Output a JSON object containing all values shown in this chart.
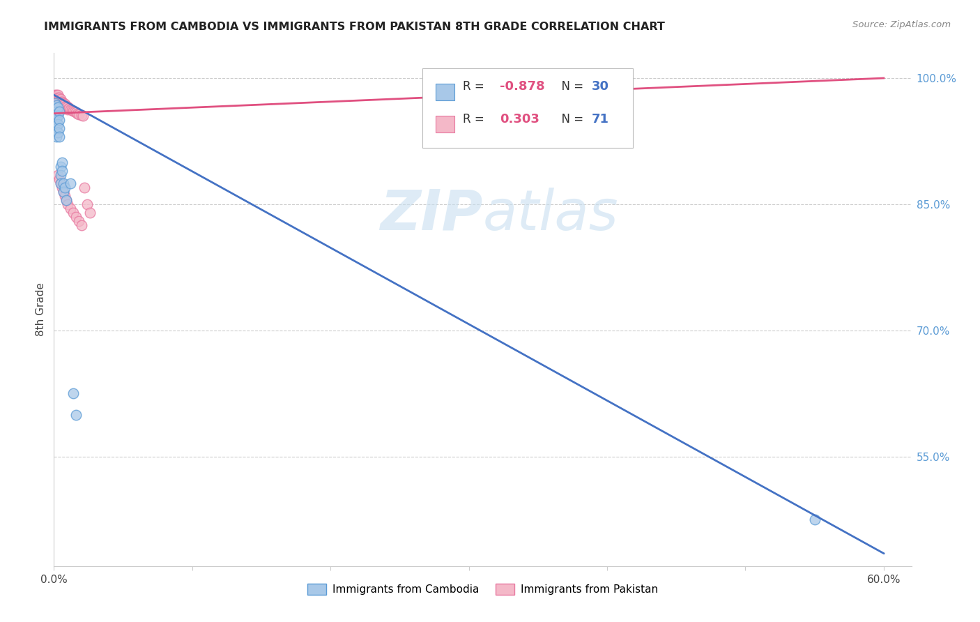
{
  "title": "IMMIGRANTS FROM CAMBODIA VS IMMIGRANTS FROM PAKISTAN 8TH GRADE CORRELATION CHART",
  "source": "Source: ZipAtlas.com",
  "ylabel": "8th Grade",
  "watermark_part1": "ZIP",
  "watermark_part2": "atlas",
  "blue_color": "#a8c8e8",
  "pink_color": "#f4b8c8",
  "blue_edge_color": "#5b9bd5",
  "pink_edge_color": "#e878a0",
  "blue_line_color": "#4472c4",
  "pink_line_color": "#e05080",
  "cambodia_points_x": [
    0.001,
    0.001,
    0.001,
    0.001,
    0.002,
    0.002,
    0.002,
    0.002,
    0.002,
    0.003,
    0.003,
    0.003,
    0.003,
    0.004,
    0.004,
    0.004,
    0.004,
    0.005,
    0.005,
    0.005,
    0.006,
    0.006,
    0.007,
    0.007,
    0.008,
    0.009,
    0.012,
    0.014,
    0.016,
    0.55
  ],
  "cambodia_points_y": [
    0.97,
    0.965,
    0.955,
    0.945,
    0.968,
    0.96,
    0.95,
    0.94,
    0.93,
    0.965,
    0.955,
    0.945,
    0.935,
    0.96,
    0.95,
    0.94,
    0.93,
    0.895,
    0.885,
    0.875,
    0.9,
    0.89,
    0.875,
    0.865,
    0.87,
    0.855,
    0.875,
    0.625,
    0.6,
    0.475
  ],
  "pakistan_points_x": [
    0.001,
    0.001,
    0.001,
    0.001,
    0.001,
    0.001,
    0.001,
    0.001,
    0.001,
    0.001,
    0.001,
    0.001,
    0.002,
    0.002,
    0.002,
    0.002,
    0.002,
    0.002,
    0.002,
    0.002,
    0.002,
    0.003,
    0.003,
    0.003,
    0.003,
    0.003,
    0.003,
    0.003,
    0.003,
    0.004,
    0.004,
    0.004,
    0.004,
    0.005,
    0.005,
    0.005,
    0.006,
    0.006,
    0.007,
    0.007,
    0.008,
    0.008,
    0.009,
    0.01,
    0.01,
    0.011,
    0.012,
    0.013,
    0.014,
    0.015,
    0.016,
    0.017,
    0.018,
    0.02,
    0.021,
    0.022,
    0.024,
    0.026,
    0.003,
    0.004,
    0.005,
    0.006,
    0.007,
    0.008,
    0.009,
    0.01,
    0.012,
    0.014,
    0.016,
    0.018,
    0.02
  ],
  "pakistan_points_y": [
    0.98,
    0.978,
    0.975,
    0.972,
    0.97,
    0.968,
    0.965,
    0.963,
    0.96,
    0.958,
    0.955,
    0.953,
    0.98,
    0.977,
    0.974,
    0.971,
    0.968,
    0.965,
    0.962,
    0.959,
    0.956,
    0.98,
    0.977,
    0.974,
    0.971,
    0.968,
    0.965,
    0.962,
    0.959,
    0.977,
    0.974,
    0.971,
    0.968,
    0.975,
    0.972,
    0.969,
    0.972,
    0.969,
    0.97,
    0.967,
    0.969,
    0.966,
    0.967,
    0.966,
    0.963,
    0.964,
    0.963,
    0.962,
    0.961,
    0.96,
    0.959,
    0.958,
    0.957,
    0.956,
    0.955,
    0.87,
    0.85,
    0.84,
    0.885,
    0.88,
    0.875,
    0.87,
    0.865,
    0.86,
    0.855,
    0.85,
    0.845,
    0.84,
    0.835,
    0.83,
    0.825
  ],
  "blue_trend_x0": 0.0,
  "blue_trend_y0": 0.98,
  "blue_trend_x1": 0.6,
  "blue_trend_y1": 0.435,
  "pink_trend_x0": 0.0,
  "pink_trend_y0": 0.958,
  "pink_trend_x1": 0.6,
  "pink_trend_y1": 1.0,
  "xlim_min": 0.0,
  "xlim_max": 0.62,
  "ylim_min": 0.42,
  "ylim_max": 1.03,
  "ytick_positions": [
    0.55,
    0.7,
    0.85,
    1.0
  ],
  "ytick_labels": [
    "55.0%",
    "70.0%",
    "85.0%",
    "100.0%"
  ],
  "xtick_positions": [
    0.0,
    0.1,
    0.2,
    0.3,
    0.4,
    0.5,
    0.6
  ],
  "xtick_labels": [
    "0.0%",
    "",
    "",
    "",
    "",
    "",
    "60.0%"
  ],
  "legend_R1": "-0.878",
  "legend_N1": "30",
  "legend_R2": "0.303",
  "legend_N2": "71"
}
